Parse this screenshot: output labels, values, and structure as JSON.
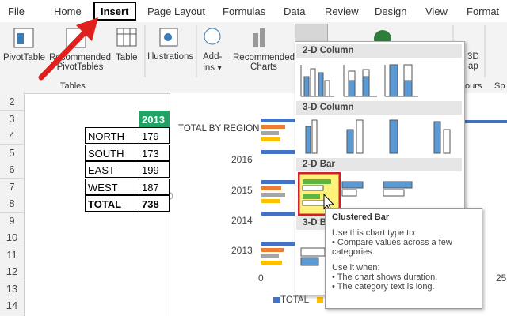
{
  "tabs": [
    "File",
    "Home",
    "Insert",
    "Page Layout",
    "Formulas",
    "Data",
    "Review",
    "Design",
    "View",
    "Format"
  ],
  "ribbon": {
    "pivot_table": "PivotTable",
    "recommended_pivot_tables": [
      "Recommended",
      "PivotTables"
    ],
    "table": "Table",
    "illustrations": "Illustrations",
    "add_ins": [
      "Add-",
      "ins"
    ],
    "recommended_charts": [
      "Recommended",
      "Charts"
    ],
    "map": [
      "3D",
      "ap"
    ],
    "groups": [
      "Tables",
      "ours",
      "Sp"
    ]
  },
  "row_numbers": [
    2,
    3,
    4,
    5,
    6,
    7,
    8,
    9,
    10,
    11,
    12,
    13,
    14
  ],
  "table": {
    "header": "2013",
    "rows": [
      [
        "NORTH",
        179
      ],
      [
        "SOUTH",
        173
      ],
      [
        "EAST",
        199
      ],
      [
        "WEST",
        187
      ],
      [
        "TOTAL",
        738
      ]
    ]
  },
  "chart": {
    "title": "TOTAL BY REGION",
    "years": [
      "2016",
      "2015",
      "2014",
      "2013"
    ],
    "x_labels": [
      0,
      25
    ],
    "legend": "TOTAL"
  },
  "gallery": {
    "sections": [
      "2-D Column",
      "3-D Column",
      "2-D Bar",
      "3-D B"
    ]
  },
  "tooltip": {
    "title": "Clustered Bar",
    "intro": "Use this chart type to:",
    "uses": [
      "• Compare values across a few categories."
    ],
    "when": "Use it when:",
    "conditions": [
      "• The chart shows duration.",
      "• The category text is long."
    ]
  }
}
